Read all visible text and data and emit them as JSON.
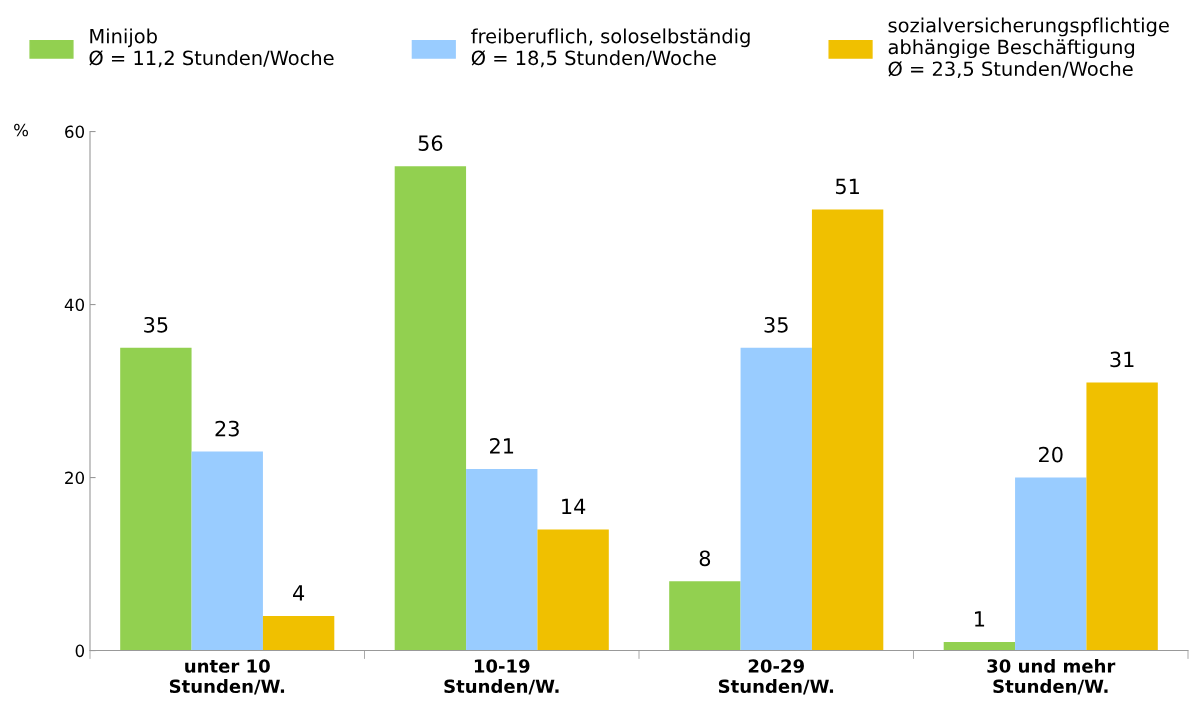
{
  "chart_data": {
    "type": "bar",
    "ylabel": "%",
    "categories": [
      "unter 10\nStunden/W.",
      "10-19\nStunden/W.",
      "20-29\nStunden/W.",
      "30 und mehr\nStunden/W."
    ],
    "series": [
      {
        "name": "Minijob\nØ = 11,2 Stunden/Woche",
        "color": "#92d050",
        "values": [
          35,
          56,
          8,
          1
        ]
      },
      {
        "name": "freiberuflich, soloselbständig\nØ = 18,5 Stunden/Woche",
        "color": "#99ccff",
        "values": [
          23,
          21,
          35,
          20
        ]
      },
      {
        "name": "sozialversicherungspflichtige\nabhängige Beschäftigung\nØ = 23,5 Stunden/Woche",
        "color": "#f0c000",
        "values": [
          4,
          14,
          51,
          31
        ]
      }
    ],
    "ylim": [
      0,
      60
    ],
    "yticks": [
      0,
      20,
      40,
      60
    ],
    "data_labels": true,
    "grid": false,
    "legend": "top"
  }
}
